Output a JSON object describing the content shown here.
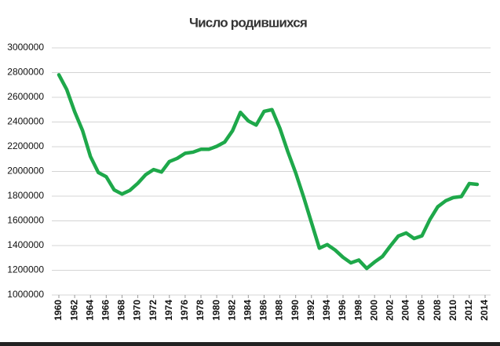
{
  "chart_data": {
    "type": "line",
    "title": "Число родившихся",
    "x": [
      1960,
      1961,
      1962,
      1963,
      1964,
      1965,
      1966,
      1967,
      1968,
      1969,
      1970,
      1971,
      1972,
      1973,
      1974,
      1975,
      1976,
      1977,
      1978,
      1979,
      1980,
      1981,
      1982,
      1983,
      1984,
      1985,
      1986,
      1987,
      1988,
      1989,
      1990,
      1991,
      1992,
      1993,
      1994,
      1995,
      1996,
      1997,
      1998,
      1999,
      2000,
      2001,
      2002,
      2003,
      2004,
      2005,
      2006,
      2007,
      2008,
      2009,
      2010,
      2011,
      2012,
      2013
    ],
    "series": [
      {
        "color": "#1ea84a",
        "values": [
          2782000,
          2662000,
          2483000,
          2331000,
          2121000,
          1991000,
          1957000,
          1851000,
          1817000,
          1847000,
          1904000,
          1974000,
          2015000,
          1995000,
          2080000,
          2106000,
          2147000,
          2156000,
          2179000,
          2179000,
          2203000,
          2237000,
          2329000,
          2478000,
          2409000,
          2375000,
          2486000,
          2500000,
          2349000,
          2161000,
          1989000,
          1795000,
          1587000,
          1379000,
          1408000,
          1364000,
          1305000,
          1260000,
          1283000,
          1215000,
          1267000,
          1312000,
          1397000,
          1477000,
          1502000,
          1457000,
          1479000,
          1610000,
          1714000,
          1762000,
          1789000,
          1797000,
          1902000,
          1895000
        ]
      }
    ],
    "xlim": [
      1960,
      2014
    ],
    "xticks": [
      1960,
      1962,
      1964,
      1966,
      1968,
      1970,
      1972,
      1974,
      1976,
      1978,
      1980,
      1982,
      1984,
      1986,
      1988,
      1990,
      1992,
      1994,
      1996,
      1998,
      2000,
      2002,
      2004,
      2006,
      2008,
      2010,
      2012,
      2014
    ],
    "ylim": [
      1000000,
      3000000
    ],
    "yticks": [
      1000000,
      1200000,
      1400000,
      1600000,
      1800000,
      2000000,
      2200000,
      2400000,
      2600000,
      2800000,
      3000000
    ],
    "grid": true
  }
}
